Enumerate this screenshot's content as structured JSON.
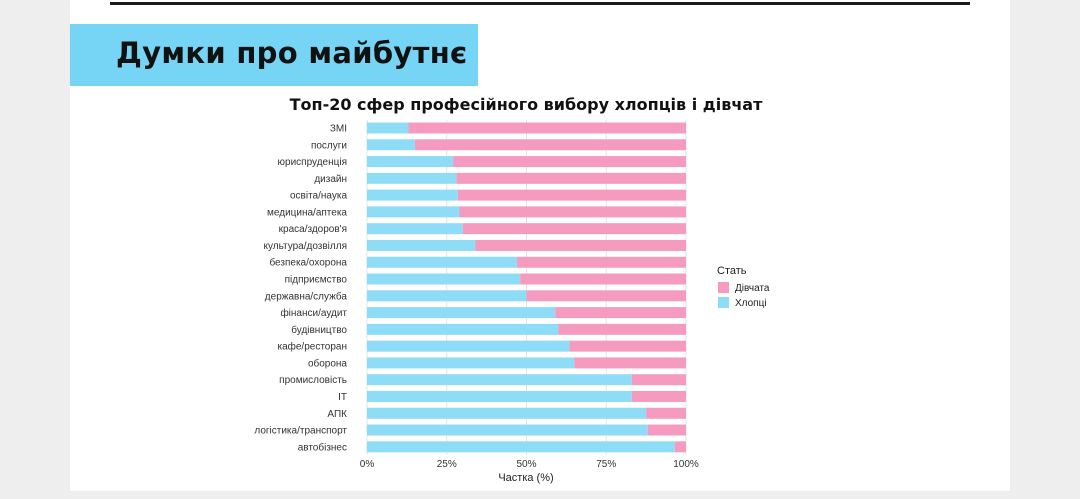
{
  "slide": {
    "heading": "Думки про майбутнє"
  },
  "colors": {
    "heading_bg": "#76d5f5",
    "boys": "#8fdcf7",
    "girls": "#f59bc0"
  },
  "chart_data": {
    "type": "bar",
    "orientation": "horizontal",
    "stacked": true,
    "title": "Топ-20 сфер професійного вибору хлопців і дівчат",
    "xlabel": "Частка (%)",
    "ylabel": "",
    "xlim": [
      0,
      100
    ],
    "x_ticks": [
      "0%",
      "25%",
      "50%",
      "75%",
      "100%"
    ],
    "grid": true,
    "legend": {
      "title": "Стать",
      "position": "right"
    },
    "categories": [
      "ЗМІ",
      "послуги",
      "юриспруденція",
      "дизайн",
      "освіта/наука",
      "медицина/аптека",
      "краса/здоров'я",
      "культура/дозвілля",
      "безпека/охорона",
      "підприємство",
      "державна/служба",
      "фінанси/аудит",
      "будівництво",
      "кафе/ресторан",
      "оборона",
      "промисловість",
      "IT",
      "АПК",
      "логістика/транспорт",
      "автобізнес"
    ],
    "series": [
      {
        "name": "Хлопці",
        "color": "#8fdcf7",
        "values": [
          13,
          15,
          27,
          28,
          28.5,
          29,
          30,
          34,
          47,
          48,
          50,
          59,
          60,
          63.5,
          65,
          83,
          83,
          87.5,
          88,
          96.5
        ]
      },
      {
        "name": "Дівчата",
        "color": "#f59bc0",
        "values": [
          87,
          85,
          73,
          72,
          71.5,
          71,
          70,
          66,
          53,
          52,
          50,
          41,
          40,
          36.5,
          35,
          17,
          17,
          12.5,
          12,
          3.5
        ]
      }
    ]
  }
}
